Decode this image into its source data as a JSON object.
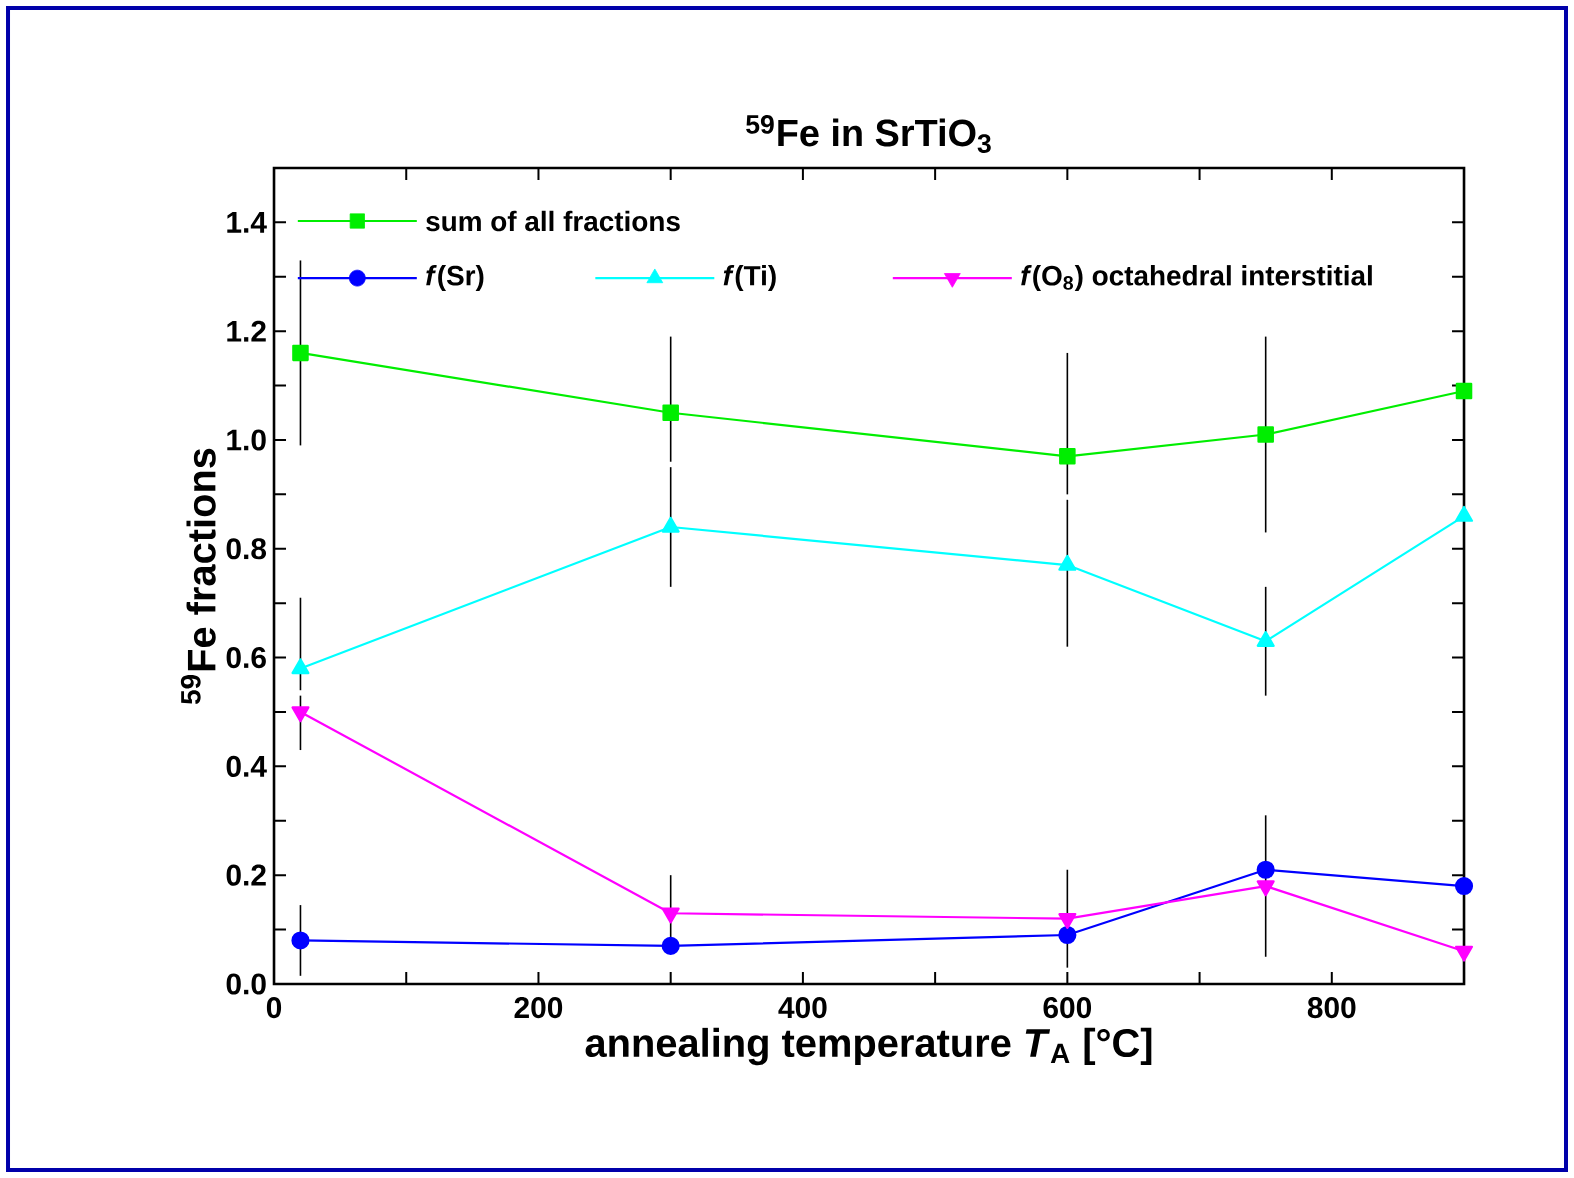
{
  "chart_data": {
    "type": "line",
    "title": "$^{59}$Fe in SrTiO$_{3}$",
    "xlabel": "annealing temperature *T*$_{A}$ [°C]",
    "ylabel": "$^{59}$Fe fractions",
    "x": [
      20,
      300,
      600,
      750,
      900
    ],
    "series": [
      {
        "name": "sum of all fractions",
        "color": "#00ee00",
        "marker": "square",
        "values": [
          1.16,
          1.05,
          0.97,
          1.01,
          1.09
        ],
        "errors": [
          0.17,
          [
            0.96,
            1.19
          ],
          [
            0.9,
            1.16
          ],
          0.18,
          null
        ]
      },
      {
        "name": "*f*(Sr)",
        "color": "#0000ff",
        "marker": "circle",
        "values": [
          0.08,
          0.07,
          0.09,
          0.21,
          0.18
        ],
        "errors": [
          0.065,
          null,
          null,
          null,
          null
        ]
      },
      {
        "name": "*f*(Ti)",
        "color": "#00ffff",
        "marker": "triangle",
        "values": [
          0.58,
          0.84,
          0.77,
          0.63,
          0.86
        ],
        "errors": [
          [
            0.54,
            0.71
          ],
          [
            0.73,
            0.95
          ],
          [
            0.62,
            0.89
          ],
          0.1,
          null
        ]
      },
      {
        "name": "*f*(O$_{8}$) octahedral interstitial",
        "color": "#ff00ff",
        "marker": "triangle down",
        "values": [
          0.5,
          0.13,
          0.12,
          0.18,
          0.06
        ],
        "errors": [
          [
            0.43,
            0.53
          ],
          0.07,
          0.09,
          0.13,
          null
        ]
      }
    ],
    "xlim": [
      0,
      900
    ],
    "xticks": [
      0,
      {
        "value": 100,
        "label": null
      },
      200,
      {
        "value": 300,
        "label": null
      },
      400,
      {
        "value": 500,
        "label": null
      },
      600,
      {
        "value": 700,
        "label": null
      },
      800,
      {
        "value": 900,
        "label": null
      }
    ],
    "ylim": [
      0,
      1.5
    ],
    "yticks": [
      {
        "value": 0,
        "label": "0.0"
      },
      {
        "value": 0.1,
        "label": null
      },
      0.2,
      {
        "value": 0.3,
        "label": null
      },
      0.4,
      {
        "value": 0.5,
        "label": null
      },
      0.6,
      {
        "value": 0.7,
        "label": null
      },
      0.8,
      {
        "value": 0.9,
        "label": null
      },
      {
        "value": 1,
        "label": "1.0"
      },
      {
        "value": 1.1,
        "label": null
      },
      1.2,
      {
        "value": 1.3,
        "label": null
      },
      1.4,
      {
        "value": 1.5,
        "label": null
      }
    ],
    "legend": "top left",
    "grid": false
  }
}
